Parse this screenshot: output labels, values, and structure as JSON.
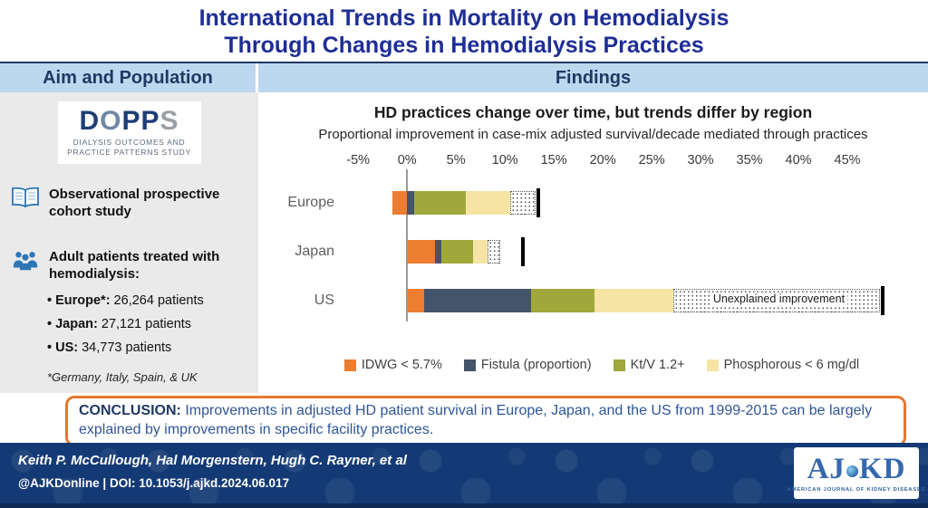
{
  "title": {
    "line1": "International Trends in Mortality on Hemodialysis",
    "line2": "Through Changes in Hemodialysis Practices"
  },
  "headers": {
    "left": "Aim and Population",
    "right": "Findings"
  },
  "sidebar": {
    "logo": {
      "letters": [
        "D",
        "O",
        "P",
        "P",
        "S"
      ],
      "subtitle_line1": "Dialysis Outcomes and",
      "subtitle_line2": "Practice Patterns Study"
    },
    "fact1": "Observational prospective cohort study",
    "fact2": "Adult patients treated with hemodialysis:",
    "patients": [
      {
        "label": "Europe*:",
        "value": " 26,264 patients"
      },
      {
        "label": "Japan:",
        "value": " 27,121 patients"
      },
      {
        "label": "US:",
        "value": " 34,773 patients"
      }
    ],
    "footnote": "*Germany, Italy, Spain, & UK"
  },
  "chart_data": {
    "type": "bar",
    "orientation": "horizontal-stacked",
    "title": "HD practices change over time, but trends differ by region",
    "subtitle": "Proportional improvement in case-mix adjusted survival/decade mediated through practices",
    "x_ticks": [
      -5,
      0,
      5,
      10,
      15,
      20,
      25,
      30,
      35,
      40,
      45
    ],
    "x_tick_labels": [
      "-5%",
      "0%",
      "5%",
      "10%",
      "15%",
      "20%",
      "25%",
      "30%",
      "35%",
      "40%",
      "45%"
    ],
    "axis_range": [
      -6.5,
      50
    ],
    "grid": false,
    "legend_position": "bottom",
    "categories": [
      "Europe",
      "Japan",
      "US"
    ],
    "series": [
      {
        "name": "IDWG < 5.7%",
        "color": "#ED7D31",
        "values": [
          -1.5,
          2.9,
          1.7
        ]
      },
      {
        "name": "Fistula (proportion)",
        "color": "#44546A",
        "values": [
          0.7,
          0.6,
          11.0
        ]
      },
      {
        "name": "Kt/V 1.2+",
        "color": "#A0A83C",
        "values": [
          5.3,
          3.2,
          6.5
        ]
      },
      {
        "name": "Phosphorous < 6 mg/dl",
        "color": "#F5E4A3",
        "values": [
          4.5,
          1.5,
          8.0
        ]
      },
      {
        "name": "Unexplained improvement",
        "color": "#FFFFFF",
        "pattern": "dotted",
        "values": [
          2.6,
          1.3,
          21.1
        ]
      }
    ],
    "observed_total_tick": [
      13.4,
      11.8,
      48.6
    ],
    "annotation": {
      "row": 2,
      "x": 38,
      "text": "Unexplained improvement"
    }
  },
  "conclusion": {
    "label": "CONCLUSION:",
    "text": "Improvements in adjusted HD patient survival in Europe, Japan, and the US from 1999-2015 can be largely explained by improvements in specific facility practices."
  },
  "footer": {
    "authors": "Keith P. McCullough, Hal Morgenstern, Hugh C. Rayner, et al",
    "handle_doi": "@AJKDonline | DOI: 10.1053/j.ajkd.2024.06.017",
    "journal_letters": [
      "A",
      "J",
      "K",
      "D"
    ],
    "journal_name": "AMERICAN JOURNAL OF KIDNEY DISEASES"
  }
}
